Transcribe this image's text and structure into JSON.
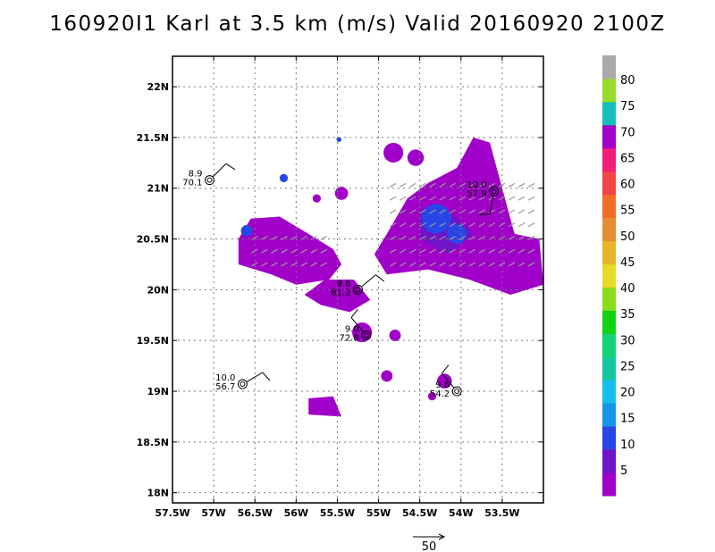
{
  "title": "160920I1 Karl at 3.5 km (m/s) Valid 20160920 2100Z",
  "chart_data": {
    "type": "heatmap",
    "title": "160920I1 Karl at 3.5 km (m/s) Valid 20160920 2100Z",
    "xlim": [
      -57.5,
      -53.0
    ],
    "ylim": [
      17.9,
      22.3
    ],
    "x_ticks": [
      {
        "value": -57.5,
        "label": "57.5W"
      },
      {
        "value": -57.0,
        "label": "57W"
      },
      {
        "value": -56.5,
        "label": "56.5W"
      },
      {
        "value": -56.0,
        "label": "56W"
      },
      {
        "value": -55.5,
        "label": "55.5W"
      },
      {
        "value": -55.0,
        "label": "55W"
      },
      {
        "value": -54.5,
        "label": "54.5W"
      },
      {
        "value": -54.0,
        "label": "54W"
      },
      {
        "value": -53.5,
        "label": "53.5W"
      }
    ],
    "y_ticks": [
      {
        "value": 18.0,
        "label": "18N"
      },
      {
        "value": 18.5,
        "label": "18.5N"
      },
      {
        "value": 19.0,
        "label": "19N"
      },
      {
        "value": 19.5,
        "label": "19.5N"
      },
      {
        "value": 20.0,
        "label": "20N"
      },
      {
        "value": 20.5,
        "label": "20.5N"
      },
      {
        "value": 21.0,
        "label": "21N"
      },
      {
        "value": 21.5,
        "label": "21.5N"
      },
      {
        "value": 22.0,
        "label": "22N"
      }
    ],
    "grid": true,
    "colorbar": {
      "labels": [
        "5",
        "10",
        "15",
        "20",
        "25",
        "30",
        "35",
        "40",
        "45",
        "50",
        "55",
        "60",
        "65",
        "70",
        "75",
        "80"
      ],
      "colors": [
        "#a000c8",
        "#7014c8",
        "#2846e6",
        "#1496e6",
        "#16bef0",
        "#12c8a0",
        "#14d278",
        "#14d214",
        "#8cdc1e",
        "#e6dc28",
        "#e6b428",
        "#e68c32",
        "#f06e28",
        "#f04646",
        "#f01e78",
        "#a000c8",
        "#16bebe",
        "#96dc28",
        "#aaaaaa"
      ]
    },
    "regions": [
      {
        "name": "west",
        "color": "#a000c8",
        "polygon": [
          [
            -56.7,
            20.5
          ],
          [
            -56.55,
            20.7
          ],
          [
            -56.2,
            20.72
          ],
          [
            -55.85,
            20.55
          ],
          [
            -55.55,
            20.4
          ],
          [
            -55.45,
            20.25
          ],
          [
            -55.6,
            20.1
          ],
          [
            -56.0,
            20.05
          ],
          [
            -56.3,
            20.15
          ],
          [
            -56.7,
            20.25
          ]
        ]
      },
      {
        "name": "central",
        "color": "#a000c8",
        "polygon": [
          [
            -55.65,
            20.1
          ],
          [
            -55.3,
            20.1
          ],
          [
            -55.1,
            19.9
          ],
          [
            -55.35,
            19.78
          ],
          [
            -55.7,
            19.85
          ],
          [
            -55.9,
            19.95
          ]
        ]
      },
      {
        "name": "east",
        "color": "#a000c8",
        "polygon": [
          [
            -54.9,
            20.55
          ],
          [
            -54.65,
            20.9
          ],
          [
            -54.4,
            21.05
          ],
          [
            -54.05,
            21.2
          ],
          [
            -53.85,
            21.5
          ],
          [
            -53.65,
            21.45
          ],
          [
            -53.5,
            21.0
          ],
          [
            -53.35,
            20.55
          ],
          [
            -53.05,
            20.5
          ],
          [
            -53.0,
            20.05
          ],
          [
            -53.4,
            19.95
          ],
          [
            -53.9,
            20.1
          ],
          [
            -54.4,
            20.2
          ],
          [
            -54.9,
            20.15
          ],
          [
            -55.05,
            20.35
          ]
        ]
      },
      {
        "name": "east-inner",
        "color": "#7014c8",
        "polygon": [
          [
            -54.5,
            20.8
          ],
          [
            -54.1,
            20.75
          ],
          [
            -53.85,
            20.55
          ],
          [
            -54.15,
            20.35
          ],
          [
            -54.5,
            20.5
          ]
        ]
      },
      {
        "name": "south",
        "color": "#a000c8",
        "polygon": [
          [
            -55.85,
            18.93
          ],
          [
            -55.55,
            18.95
          ],
          [
            -55.45,
            18.75
          ],
          [
            -55.85,
            18.77
          ]
        ]
      }
    ],
    "blobs": [
      {
        "color": "#2846e6",
        "lon": -54.3,
        "lat": 20.7,
        "r": 0.18
      },
      {
        "color": "#2846e6",
        "lon": -54.05,
        "lat": 20.55,
        "r": 0.12
      },
      {
        "color": "#2846e6",
        "lon": -56.6,
        "lat": 20.58,
        "r": 0.07
      },
      {
        "color": "#2846e6",
        "lon": -56.15,
        "lat": 21.1,
        "r": 0.05
      },
      {
        "color": "#2846e6",
        "lon": -55.48,
        "lat": 21.48,
        "r": 0.03
      },
      {
        "color": "#a000c8",
        "lon": -54.82,
        "lat": 21.35,
        "r": 0.12
      },
      {
        "color": "#a000c8",
        "lon": -54.55,
        "lat": 21.3,
        "r": 0.1
      },
      {
        "color": "#a000c8",
        "lon": -55.45,
        "lat": 20.95,
        "r": 0.08
      },
      {
        "color": "#a000c8",
        "lon": -55.75,
        "lat": 20.9,
        "r": 0.05
      },
      {
        "color": "#a000c8",
        "lon": -55.2,
        "lat": 19.58,
        "r": 0.12
      },
      {
        "color": "#a000c8",
        "lon": -54.8,
        "lat": 19.55,
        "r": 0.07
      },
      {
        "color": "#a000c8",
        "lon": -54.9,
        "lat": 19.15,
        "r": 0.07
      },
      {
        "color": "#a000c8",
        "lon": -54.2,
        "lat": 19.1,
        "r": 0.09
      },
      {
        "color": "#a000c8",
        "lon": -54.35,
        "lat": 18.95,
        "r": 0.05
      }
    ],
    "stations": [
      {
        "lon": -57.05,
        "lat": 21.08,
        "wind_speed": "8.9",
        "pressure": "70.1",
        "label_side": "left",
        "barb_dir": 45
      },
      {
        "lon": -53.6,
        "lat": 20.97,
        "wind_speed": "10.0",
        "pressure": "57.9",
        "label_side": "left",
        "barb_dir": 190
      },
      {
        "lon": -55.25,
        "lat": 20.0,
        "wind_speed": "9.6",
        "pressure": "81.2",
        "label_side": "left",
        "barb_dir": 50
      },
      {
        "lon": -55.15,
        "lat": 19.55,
        "wind_speed": "9.0",
        "pressure": "72.8",
        "label_side": "left",
        "barb_dir": 320
      },
      {
        "lon": -56.65,
        "lat": 19.07,
        "wind_speed": "10.0",
        "pressure": "56.7",
        "label_side": "left",
        "barb_dir": 60
      },
      {
        "lon": -54.05,
        "lat": 19.0,
        "wind_speed": "9.6",
        "pressure": "54.2",
        "label_side": "left",
        "barb_dir": 320
      }
    ],
    "vector_scale_label": "50"
  }
}
